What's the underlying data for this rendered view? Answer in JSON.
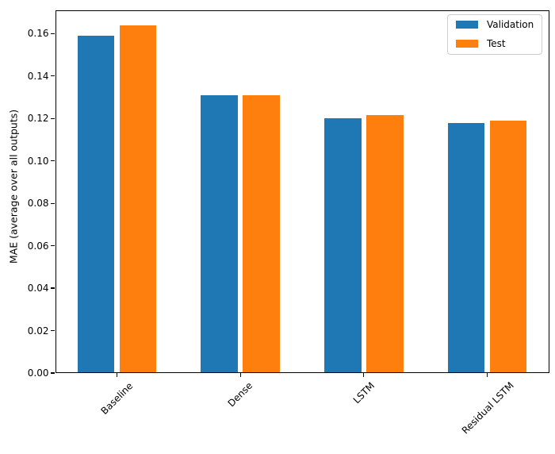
{
  "chart_data": {
    "type": "bar",
    "title": "",
    "xlabel": "",
    "ylabel": "MAE (average over all outputs)",
    "categories": [
      "Baseline",
      "Dense",
      "LSTM",
      "Residual LSTM"
    ],
    "series": [
      {
        "name": "Validation",
        "color": "#1f77b4",
        "values": [
          0.159,
          0.131,
          0.12,
          0.118
        ]
      },
      {
        "name": "Test",
        "color": "#ff7f0e",
        "values": [
          0.164,
          0.131,
          0.1215,
          0.119
        ]
      }
    ],
    "ylim": [
      0,
      0.171
    ],
    "yticks": [
      0.0,
      0.02,
      0.04,
      0.06,
      0.08,
      0.1,
      0.12,
      0.14,
      0.16
    ],
    "ytick_labels": [
      "0.00",
      "0.02",
      "0.04",
      "0.06",
      "0.08",
      "0.10",
      "0.12",
      "0.14",
      "0.16"
    ],
    "xtick_rotation": 45,
    "grid": false,
    "legend_position": "upper right",
    "background_color": "#ffffff",
    "spine_color": "#000000"
  }
}
